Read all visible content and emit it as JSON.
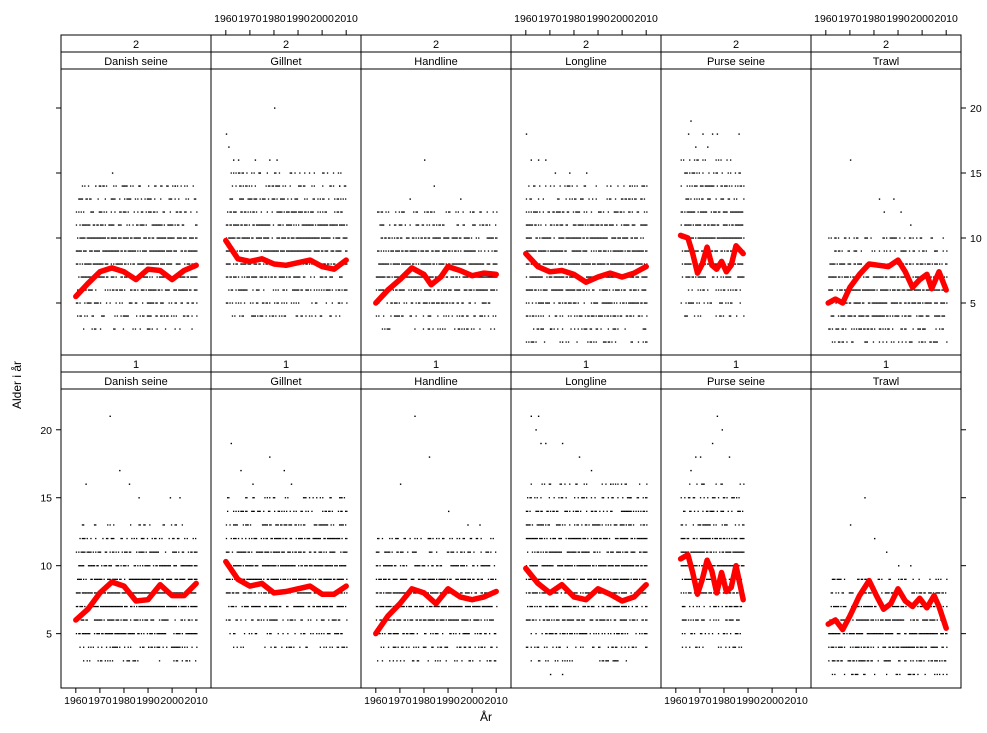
{
  "chart_data": {
    "type": "scatter",
    "layout": "lattice 6 columns x 2 rows, each panel has two strips (stratum number, gear)",
    "xlabel": "År",
    "ylabel": "Alder i år",
    "xlim": [
      1958,
      2012
    ],
    "ylim": [
      1,
      23
    ],
    "x_ticks": [
      1960,
      1970,
      1980,
      1990,
      2000,
      2010
    ],
    "y_ticks": [
      5,
      10,
      15,
      20
    ],
    "smoother_color": "#ff0000",
    "point_color": "#000000",
    "panels": [
      {
        "row": "2",
        "gear": "Danish seine",
        "xrange": [
          1960,
          2010
        ],
        "ymin": 3,
        "ymax": 14,
        "outliers": [
          [
            1975,
            15
          ],
          [
            1968,
            14
          ],
          [
            1970,
            14
          ],
          [
            1986,
            14
          ],
          [
            1998,
            14
          ],
          [
            2001,
            14
          ]
        ],
        "smooth": [
          [
            1960,
            5.5
          ],
          [
            1965,
            6.5
          ],
          [
            1970,
            7.4
          ],
          [
            1975,
            7.7
          ],
          [
            1980,
            7.4
          ],
          [
            1985,
            6.8
          ],
          [
            1990,
            7.6
          ],
          [
            1995,
            7.5
          ],
          [
            2000,
            6.8
          ],
          [
            2005,
            7.5
          ],
          [
            2010,
            7.9
          ]
        ]
      },
      {
        "row": "2",
        "gear": "Gillnet",
        "xrange": [
          1960,
          2010
        ],
        "ymin": 4,
        "ymax": 15,
        "outliers": [
          [
            1960,
            18
          ],
          [
            1961,
            17
          ],
          [
            1963,
            16
          ],
          [
            1965,
            16
          ],
          [
            1972,
            16
          ],
          [
            1974,
            15
          ],
          [
            1978,
            16
          ],
          [
            1980,
            20
          ],
          [
            1981,
            16
          ],
          [
            1987,
            15
          ],
          [
            2007,
            14
          ]
        ],
        "smooth": [
          [
            1960,
            9.8
          ],
          [
            1965,
            8.4
          ],
          [
            1970,
            8.2
          ],
          [
            1975,
            8.4
          ],
          [
            1980,
            8.0
          ],
          [
            1985,
            7.9
          ],
          [
            1990,
            8.1
          ],
          [
            1995,
            8.3
          ],
          [
            2000,
            7.8
          ],
          [
            2005,
            7.6
          ],
          [
            2010,
            8.3
          ]
        ]
      },
      {
        "row": "2",
        "gear": "Handline",
        "xrange": [
          1960,
          2010
        ],
        "ymin": 3,
        "ymax": 12,
        "outliers": [
          [
            1980,
            16
          ],
          [
            1984,
            14
          ],
          [
            1974,
            13
          ],
          [
            1995,
            13
          ],
          [
            2000,
            12
          ]
        ],
        "smooth": [
          [
            1960,
            5.0
          ],
          [
            1965,
            6.0
          ],
          [
            1970,
            6.8
          ],
          [
            1975,
            7.7
          ],
          [
            1980,
            7.2
          ],
          [
            1983,
            6.4
          ],
          [
            1987,
            7.0
          ],
          [
            1990,
            7.8
          ],
          [
            1995,
            7.5
          ],
          [
            2000,
            7.1
          ],
          [
            2005,
            7.3
          ],
          [
            2010,
            7.2
          ]
        ]
      },
      {
        "row": "2",
        "gear": "Longline",
        "xrange": [
          1960,
          2010
        ],
        "ymin": 2,
        "ymax": 14,
        "outliers": [
          [
            1960,
            18
          ],
          [
            1962,
            16
          ],
          [
            1965,
            16
          ],
          [
            1968,
            16
          ],
          [
            1972,
            15
          ],
          [
            1978,
            15
          ],
          [
            1985,
            15
          ],
          [
            1995,
            14
          ],
          [
            2003,
            14
          ],
          [
            1970,
            3
          ],
          [
            1975,
            2
          ]
        ],
        "smooth": [
          [
            1960,
            8.8
          ],
          [
            1965,
            7.8
          ],
          [
            1970,
            7.4
          ],
          [
            1975,
            7.5
          ],
          [
            1980,
            7.2
          ],
          [
            1985,
            6.6
          ],
          [
            1990,
            7.0
          ],
          [
            1995,
            7.3
          ],
          [
            2000,
            7.0
          ],
          [
            2005,
            7.3
          ],
          [
            2010,
            7.8
          ]
        ]
      },
      {
        "row": "2",
        "gear": "Purse seine",
        "xrange": [
          1962,
          1988
        ],
        "ymin": 4,
        "ymax": 16,
        "outliers": [
          [
            1966,
            19
          ],
          [
            1965,
            18
          ],
          [
            1971,
            18
          ],
          [
            1975,
            18
          ],
          [
            1977,
            18
          ],
          [
            1986,
            18
          ],
          [
            1968,
            17
          ],
          [
            1973,
            17
          ]
        ],
        "smooth": [
          [
            1962,
            10.2
          ],
          [
            1965,
            10.0
          ],
          [
            1967,
            8.8
          ],
          [
            1969,
            7.3
          ],
          [
            1971,
            8.0
          ],
          [
            1973,
            9.3
          ],
          [
            1975,
            7.9
          ],
          [
            1977,
            7.6
          ],
          [
            1979,
            8.2
          ],
          [
            1981,
            7.4
          ],
          [
            1983,
            7.9
          ],
          [
            1985,
            9.4
          ],
          [
            1988,
            8.8
          ]
        ]
      },
      {
        "row": "2",
        "gear": "Trawl",
        "xrange": [
          1961,
          2010
        ],
        "ymin": 2,
        "ymax": 10,
        "outliers": [
          [
            1970,
            16
          ],
          [
            1982,
            13
          ],
          [
            1984,
            12
          ],
          [
            1988,
            13
          ],
          [
            1991,
            12
          ],
          [
            1995,
            11
          ],
          [
            2005,
            9
          ],
          [
            2000,
            3
          ]
        ],
        "smooth": [
          [
            1961,
            5.0
          ],
          [
            1964,
            5.3
          ],
          [
            1967,
            5.0
          ],
          [
            1970,
            6.2
          ],
          [
            1974,
            7.2
          ],
          [
            1978,
            8.0
          ],
          [
            1982,
            7.9
          ],
          [
            1986,
            7.8
          ],
          [
            1990,
            8.3
          ],
          [
            1993,
            7.4
          ],
          [
            1996,
            6.2
          ],
          [
            1999,
            6.8
          ],
          [
            2002,
            7.2
          ],
          [
            2004,
            6.1
          ],
          [
            2007,
            7.4
          ],
          [
            2010,
            6.0
          ]
        ]
      },
      {
        "row": "1",
        "gear": "Danish seine",
        "xrange": [
          1960,
          2010
        ],
        "ymin": 3,
        "ymax": 13,
        "outliers": [
          [
            1974,
            21
          ],
          [
            1978,
            17
          ],
          [
            1982,
            16
          ],
          [
            1964,
            16
          ],
          [
            1986,
            15
          ],
          [
            1999,
            15
          ],
          [
            2003,
            15
          ],
          [
            1990,
            4
          ]
        ],
        "smooth": [
          [
            1960,
            6.0
          ],
          [
            1965,
            6.8
          ],
          [
            1970,
            8.0
          ],
          [
            1975,
            8.8
          ],
          [
            1980,
            8.5
          ],
          [
            1985,
            7.4
          ],
          [
            1990,
            7.5
          ],
          [
            1995,
            8.6
          ],
          [
            2000,
            7.8
          ],
          [
            2005,
            7.8
          ],
          [
            2010,
            8.7
          ]
        ]
      },
      {
        "row": "1",
        "gear": "Gillnet",
        "xrange": [
          1960,
          2010
        ],
        "ymin": 4,
        "ymax": 15,
        "outliers": [
          [
            1962,
            19
          ],
          [
            1966,
            17
          ],
          [
            1978,
            18
          ],
          [
            1984,
            17
          ],
          [
            1987,
            16
          ],
          [
            1971,
            16
          ],
          [
            1985,
            4
          ]
        ],
        "smooth": [
          [
            1960,
            10.3
          ],
          [
            1965,
            9.0
          ],
          [
            1970,
            8.5
          ],
          [
            1975,
            8.7
          ],
          [
            1980,
            8.0
          ],
          [
            1985,
            8.1
          ],
          [
            1990,
            8.3
          ],
          [
            1995,
            8.5
          ],
          [
            2000,
            7.9
          ],
          [
            2005,
            7.9
          ],
          [
            2010,
            8.5
          ]
        ]
      },
      {
        "row": "1",
        "gear": "Handline",
        "xrange": [
          1960,
          2010
        ],
        "ymin": 3,
        "ymax": 12,
        "outliers": [
          [
            1976,
            21
          ],
          [
            1982,
            18
          ],
          [
            1970,
            16
          ],
          [
            1990,
            14
          ],
          [
            2003,
            13
          ],
          [
            1998,
            13
          ]
        ],
        "smooth": [
          [
            1960,
            5.0
          ],
          [
            1965,
            6.3
          ],
          [
            1970,
            7.2
          ],
          [
            1975,
            8.3
          ],
          [
            1980,
            8.0
          ],
          [
            1985,
            7.2
          ],
          [
            1990,
            8.3
          ],
          [
            1995,
            7.7
          ],
          [
            2000,
            7.5
          ],
          [
            2005,
            7.7
          ],
          [
            2010,
            8.1
          ]
        ]
      },
      {
        "row": "1",
        "gear": "Longline",
        "xrange": [
          1960,
          2010
        ],
        "ymin": 3,
        "ymax": 16,
        "outliers": [
          [
            1962,
            21
          ],
          [
            1965,
            21
          ],
          [
            1964,
            20
          ],
          [
            1966,
            19
          ],
          [
            1968,
            19
          ],
          [
            1975,
            19
          ],
          [
            1982,
            18
          ],
          [
            1987,
            17
          ],
          [
            1995,
            16
          ],
          [
            2003,
            15
          ],
          [
            1970,
            2
          ],
          [
            1975,
            2
          ]
        ],
        "smooth": [
          [
            1960,
            9.8
          ],
          [
            1965,
            8.7
          ],
          [
            1970,
            8.0
          ],
          [
            1975,
            8.6
          ],
          [
            1980,
            7.7
          ],
          [
            1985,
            7.5
          ],
          [
            1990,
            8.3
          ],
          [
            1995,
            7.9
          ],
          [
            2000,
            7.4
          ],
          [
            2005,
            7.7
          ],
          [
            2010,
            8.6
          ]
        ]
      },
      {
        "row": "1",
        "gear": "Purse seine",
        "xrange": [
          1962,
          1988
        ],
        "ymin": 4,
        "ymax": 16,
        "outliers": [
          [
            1977,
            21
          ],
          [
            1979,
            20
          ],
          [
            1975,
            19
          ],
          [
            1968,
            18
          ],
          [
            1970,
            18
          ],
          [
            1982,
            18
          ],
          [
            1966,
            17
          ]
        ],
        "smooth": [
          [
            1962,
            10.5
          ],
          [
            1965,
            10.8
          ],
          [
            1967,
            9.5
          ],
          [
            1969,
            7.9
          ],
          [
            1971,
            9.0
          ],
          [
            1973,
            10.4
          ],
          [
            1975,
            9.6
          ],
          [
            1977,
            8.0
          ],
          [
            1979,
            9.5
          ],
          [
            1981,
            8.1
          ],
          [
            1983,
            8.4
          ],
          [
            1985,
            10.0
          ],
          [
            1988,
            7.5
          ]
        ]
      },
      {
        "row": "1",
        "gear": "Trawl",
        "xrange": [
          1961,
          2010
        ],
        "ymin": 2,
        "ymax": 9,
        "outliers": [
          [
            1976,
            15
          ],
          [
            1970,
            13
          ],
          [
            1980,
            12
          ],
          [
            1990,
            10
          ],
          [
            1995,
            10
          ],
          [
            1985,
            11
          ],
          [
            2007,
            3
          ]
        ],
        "smooth": [
          [
            1961,
            5.7
          ],
          [
            1964,
            6.0
          ],
          [
            1967,
            5.3
          ],
          [
            1970,
            6.3
          ],
          [
            1974,
            7.8
          ],
          [
            1978,
            8.9
          ],
          [
            1981,
            7.8
          ],
          [
            1984,
            6.8
          ],
          [
            1987,
            7.2
          ],
          [
            1990,
            8.3
          ],
          [
            1993,
            7.4
          ],
          [
            1996,
            7.0
          ],
          [
            1999,
            7.6
          ],
          [
            2002,
            6.9
          ],
          [
            2005,
            7.8
          ],
          [
            2007,
            7.0
          ],
          [
            2010,
            5.4
          ]
        ]
      }
    ]
  }
}
